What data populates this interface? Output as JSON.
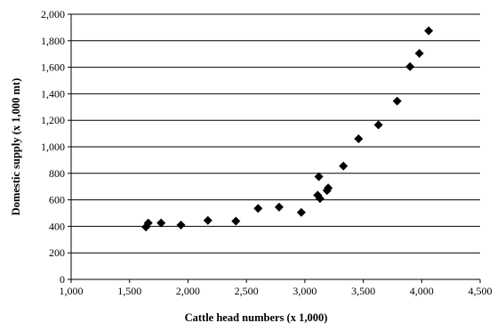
{
  "chart_data": {
    "type": "scatter",
    "title": "",
    "xlabel": "Cattle head numbers (x 1,000)",
    "ylabel": "Domestic supply (x 1,000 mt)",
    "xlim": [
      1000,
      4500
    ],
    "ylim": [
      0,
      2000
    ],
    "grid": "horizontal",
    "legend": "none",
    "x_ticks": [
      1000,
      1500,
      2000,
      2500,
      3000,
      3500,
      4000,
      4500
    ],
    "y_ticks": [
      0,
      200,
      400,
      600,
      800,
      1000,
      1200,
      1400,
      1600,
      1800,
      2000
    ],
    "x_tick_labels": [
      "1,000",
      "1,500",
      "2,000",
      "2,500",
      "3,000",
      "3,500",
      "4,000",
      "4,500"
    ],
    "y_tick_labels": [
      "0",
      "200",
      "400",
      "600",
      "800",
      "1,000",
      "1,200",
      "1,400",
      "1,600",
      "1,800",
      "2,000"
    ],
    "marker": "diamond",
    "marker_color": "#000000",
    "points": [
      {
        "x": 1640,
        "y": 395
      },
      {
        "x": 1660,
        "y": 425
      },
      {
        "x": 1770,
        "y": 425
      },
      {
        "x": 1940,
        "y": 410
      },
      {
        "x": 2170,
        "y": 445
      },
      {
        "x": 2410,
        "y": 440
      },
      {
        "x": 2600,
        "y": 535
      },
      {
        "x": 2780,
        "y": 545
      },
      {
        "x": 2970,
        "y": 505
      },
      {
        "x": 3110,
        "y": 635
      },
      {
        "x": 3120,
        "y": 775
      },
      {
        "x": 3130,
        "y": 610
      },
      {
        "x": 3190,
        "y": 670
      },
      {
        "x": 3200,
        "y": 690
      },
      {
        "x": 3330,
        "y": 855
      },
      {
        "x": 3460,
        "y": 1060
      },
      {
        "x": 3630,
        "y": 1165
      },
      {
        "x": 3790,
        "y": 1345
      },
      {
        "x": 3900,
        "y": 1605
      },
      {
        "x": 3980,
        "y": 1705
      },
      {
        "x": 4060,
        "y": 1875
      }
    ]
  }
}
